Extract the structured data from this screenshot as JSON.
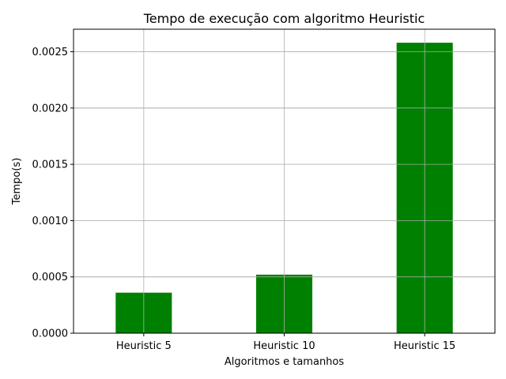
{
  "chart_data": {
    "type": "bar",
    "title": "Tempo de execução com algoritmo Heuristic",
    "xlabel": "Algoritmos e tamanhos",
    "ylabel": "Tempo(s)",
    "categories": [
      "Heuristic 5",
      "Heuristic 10",
      "Heuristic 15"
    ],
    "values": [
      0.00036,
      0.00052,
      0.00258
    ],
    "ylim": [
      0,
      0.0027
    ],
    "yticks": [
      "0.0000",
      "0.0005",
      "0.0010",
      "0.0015",
      "0.0020",
      "0.0025"
    ],
    "ytick_values": [
      0,
      0.0005,
      0.001,
      0.0015,
      0.002,
      0.0025
    ],
    "grid": true,
    "bar_color": "#008000",
    "grid_color": "#b0b0b0"
  }
}
